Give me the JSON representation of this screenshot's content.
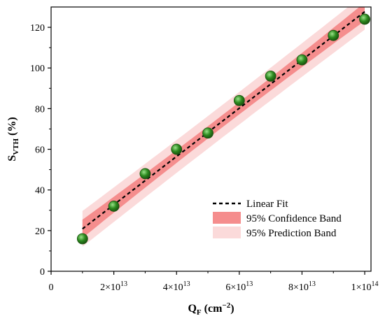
{
  "chart_data": {
    "type": "scatter",
    "xlabel": {
      "main": "Q",
      "sub": "F",
      "unit_open": " (cm",
      "sup": "−2",
      "unit_close": ")"
    },
    "ylabel": {
      "main": "S",
      "sub": "VTH",
      "unit": " (%)"
    },
    "xlim": [
      0,
      102000000000000.0
    ],
    "ylim": [
      0,
      130
    ],
    "x_ticks": [
      {
        "value": 0,
        "mantissa": "0",
        "exp": ""
      },
      {
        "value": 20000000000000.0,
        "mantissa": "2×10",
        "exp": "13"
      },
      {
        "value": 40000000000000.0,
        "mantissa": "4×10",
        "exp": "13"
      },
      {
        "value": 60000000000000.0,
        "mantissa": "6×10",
        "exp": "13"
      },
      {
        "value": 80000000000000.0,
        "mantissa": "8×10",
        "exp": "13"
      },
      {
        "value": 100000000000000.0,
        "mantissa": "1×10",
        "exp": "14"
      }
    ],
    "y_ticks": [
      0,
      20,
      40,
      60,
      80,
      100,
      120
    ],
    "series": [
      {
        "type": "scatter",
        "x": [
          10000000000000.0,
          20000000000000.0,
          30000000000000.0,
          40000000000000.0,
          50000000000000.0,
          60000000000000.0,
          70000000000000.0,
          80000000000000.0,
          90000000000000.0,
          100000000000000.0
        ],
        "y": [
          16,
          32,
          48,
          60,
          68,
          84,
          96,
          104,
          116,
          124
        ]
      }
    ],
    "fit": {
      "slope_per_1e13": 11.867,
      "intercept": 9.0,
      "x_range": [
        10000000000000.0,
        100000000000000.0
      ],
      "confidence_halfwidth": [
        4.5,
        3.0,
        4.5
      ],
      "prediction_halfwidth": [
        8.8,
        8.0,
        8.8
      ]
    },
    "legend": {
      "position": "bottom-right",
      "entries": [
        "Linear Fit",
        "95% Confidence Band",
        "95% Prediction Band"
      ]
    },
    "colors": {
      "marker": "#2d8a1f",
      "marker_highlight": "#9be28a",
      "marker_edge": "#1a5410",
      "fit_line": "#000000",
      "confidence_band": "#f58d8d",
      "prediction_band": "#fbdada",
      "axis": "#000000"
    }
  }
}
